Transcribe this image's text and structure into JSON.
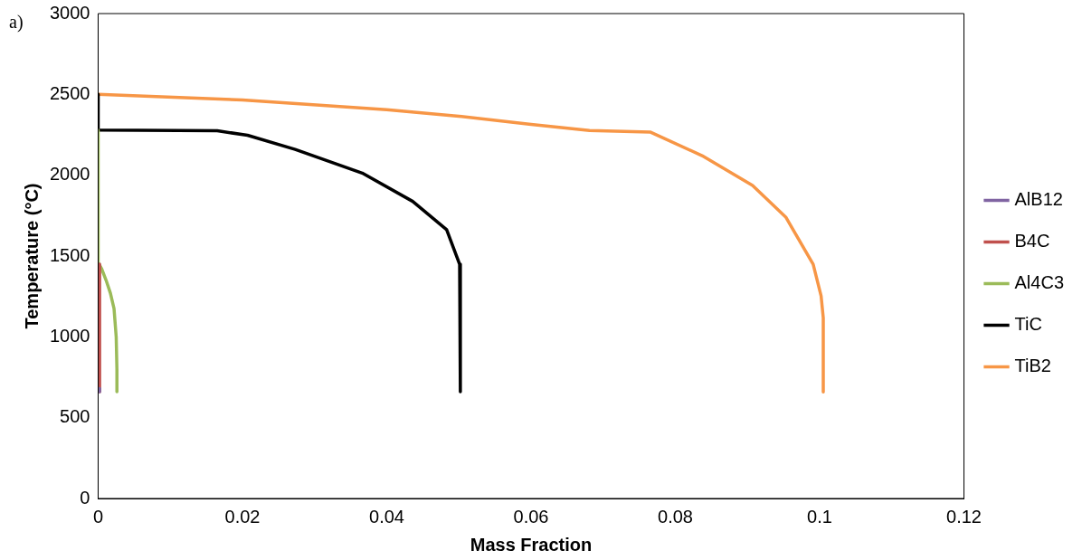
{
  "chart_data": {
    "type": "line",
    "xlabel": "Mass Fraction",
    "ylabel": "Temperature (°C)",
    "annotations": [
      "a)"
    ],
    "xlim": [
      0,
      0.12
    ],
    "xticks": [
      0,
      0.02,
      0.04,
      0.06,
      0.08,
      0.1,
      0.12
    ],
    "ylim": [
      0,
      3000
    ],
    "yticks": [
      0,
      500,
      1000,
      1500,
      2000,
      2500,
      3000
    ],
    "grid": false,
    "legend": "right",
    "marker": "none",
    "line_style": "solid",
    "series": [
      {
        "name": "AlB12",
        "color": "#8064a2",
        "x": [
          0.0002,
          0.0002
        ],
        "values": [
          660,
          680
        ]
      },
      {
        "name": "B4C",
        "color": "#c0504d",
        "x": [
          0.0002,
          0.0002
        ],
        "values": [
          660,
          1450
        ]
      },
      {
        "name": "Al4C3",
        "color": "#9bbb59",
        "x": [
          0,
          0,
          0.0005,
          0.0011,
          0.0017,
          0.0022,
          0.0025,
          0.0026,
          0.0026
        ],
        "values": [
          2280,
          1460,
          1420,
          1350,
          1270,
          1175,
          1000,
          800,
          660
        ]
      },
      {
        "name": "TiC",
        "color": "#000000",
        "x": [
          0,
          0,
          0.0165,
          0.0207,
          0.0273,
          0.0366,
          0.0436,
          0.0483,
          0.0501,
          0.0502
        ],
        "values": [
          2500,
          2280,
          2275,
          2247,
          2160,
          2013,
          1838,
          1663,
          1449,
          660
        ]
      },
      {
        "name": "TiB2",
        "color": "#f79646",
        "x": [
          0,
          0.02,
          0.04,
          0.05,
          0.06,
          0.0681,
          0.0765,
          0.0837,
          0.0907,
          0.0953,
          0.0991,
          0.1002,
          0.1005,
          0.1005
        ],
        "values": [
          2500,
          2465,
          2405,
          2365,
          2315,
          2277,
          2267,
          2121,
          1936,
          1741,
          1449,
          1253,
          1117,
          659
        ]
      }
    ]
  }
}
